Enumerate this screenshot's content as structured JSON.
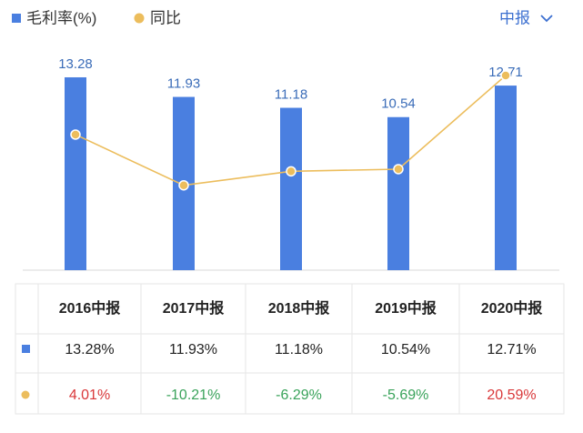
{
  "chart_data": {
    "type": "bar",
    "categories": [
      "2016中报",
      "2017中报",
      "2018中报",
      "2019中报",
      "2020中报"
    ],
    "series": [
      {
        "name": "毛利率(%)",
        "color": "#4a7fe0",
        "values": [
          13.28,
          11.93,
          11.18,
          10.54,
          12.71
        ],
        "value_labels": [
          "13.28%",
          "11.93%",
          "11.18%",
          "10.54%",
          "12.71%"
        ]
      },
      {
        "name": "同比",
        "color": "#ecbd5c",
        "axis": "y2",
        "values": [
          4.01,
          -10.21,
          -6.29,
          -5.69,
          20.59
        ],
        "value_labels": [
          "4.01%",
          "-10.21%",
          "-6.29%",
          "-5.69%",
          "20.59%"
        ]
      }
    ],
    "ylim": [
      0,
      14
    ],
    "y2lim": [
      -34,
      23
    ],
    "positive_color": "#d9383a",
    "negative_color": "#3aa35b"
  },
  "period_selector": "中报"
}
